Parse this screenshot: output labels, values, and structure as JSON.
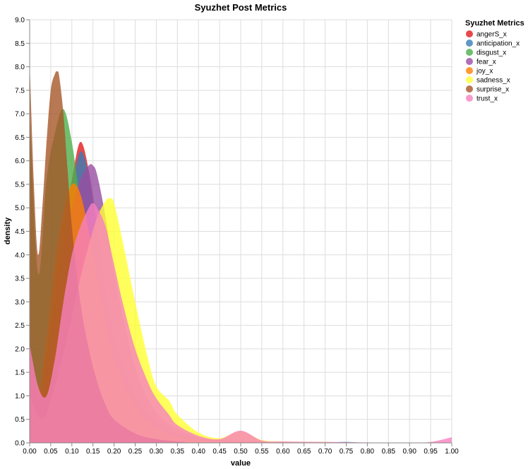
{
  "chart_data": {
    "type": "area",
    "title": "Syuzhet Post Metrics",
    "xlabel": "value",
    "ylabel": "density",
    "xlim": [
      0,
      1
    ],
    "ylim": [
      0,
      9
    ],
    "x_ticks": [
      "0.00",
      "0.05",
      "0.10",
      "0.15",
      "0.20",
      "0.25",
      "0.30",
      "0.35",
      "0.40",
      "0.45",
      "0.50",
      "0.55",
      "0.60",
      "0.65",
      "0.70",
      "0.75",
      "0.80",
      "0.85",
      "0.90",
      "0.95",
      "1.00"
    ],
    "y_ticks": [
      "0.0",
      "0.5",
      "1.0",
      "1.5",
      "2.0",
      "2.5",
      "3.0",
      "3.5",
      "4.0",
      "4.5",
      "5.0",
      "5.5",
      "6.0",
      "6.5",
      "7.0",
      "7.5",
      "8.0",
      "8.5",
      "9.0"
    ],
    "grid": true,
    "legend_title": "Syuzhet Metrics",
    "legend_position": "top-right",
    "series": [
      {
        "name": "angerS_x",
        "color": "#e41a1c",
        "x": [
          0,
          0.02,
          0.04,
          0.06,
          0.08,
          0.1,
          0.12,
          0.14,
          0.16,
          0.18,
          0.2,
          0.25,
          0.3,
          0.35,
          0.4,
          0.45,
          0.5,
          0.55,
          0.6,
          0.7,
          0.8,
          0.9,
          1.0
        ],
        "y": [
          2.2,
          1.1,
          1.9,
          3.3,
          4.6,
          5.6,
          6.4,
          5.8,
          4.6,
          3.3,
          2.3,
          1.0,
          0.45,
          0.2,
          0.08,
          0.03,
          0.02,
          0.01,
          0.0,
          0.0,
          0.0,
          0.0,
          0.0
        ]
      },
      {
        "name": "anticipation_x",
        "color": "#377eb8",
        "x": [
          0,
          0.02,
          0.04,
          0.06,
          0.08,
          0.1,
          0.12,
          0.14,
          0.16,
          0.18,
          0.2,
          0.25,
          0.3,
          0.35,
          0.4,
          0.45,
          0.5,
          0.55,
          0.6,
          0.7,
          0.75,
          0.8,
          0.9,
          1.0
        ],
        "y": [
          2.0,
          1.1,
          1.8,
          3.2,
          4.5,
          5.4,
          6.2,
          5.7,
          4.5,
          3.3,
          2.3,
          1.0,
          0.45,
          0.2,
          0.08,
          0.04,
          0.02,
          0.01,
          0.0,
          0.0,
          0.02,
          0.0,
          0.0,
          0.0
        ]
      },
      {
        "name": "disgust_x",
        "color": "#4daf4a",
        "x": [
          0,
          0.02,
          0.04,
          0.06,
          0.08,
          0.1,
          0.12,
          0.14,
          0.16,
          0.18,
          0.2,
          0.25,
          0.3,
          0.35,
          0.4,
          0.45,
          0.5,
          0.55,
          0.6,
          0.7,
          0.8,
          0.9,
          1.0
        ],
        "y": [
          7.0,
          3.6,
          5.6,
          6.6,
          7.1,
          6.4,
          5.1,
          3.8,
          2.6,
          1.7,
          1.1,
          0.45,
          0.2,
          0.1,
          0.05,
          0.03,
          0.02,
          0.01,
          0.0,
          0.0,
          0.0,
          0.0,
          0.0
        ]
      },
      {
        "name": "fear_x",
        "color": "#984ea3",
        "x": [
          0,
          0.02,
          0.04,
          0.06,
          0.08,
          0.1,
          0.12,
          0.14,
          0.15,
          0.16,
          0.18,
          0.2,
          0.25,
          0.3,
          0.35,
          0.4,
          0.45,
          0.5,
          0.55,
          0.6,
          0.7,
          0.8,
          0.9,
          1.0
        ],
        "y": [
          2.2,
          1.0,
          1.6,
          2.9,
          4.1,
          5.0,
          5.6,
          5.9,
          5.9,
          5.7,
          4.8,
          3.6,
          1.6,
          0.65,
          0.3,
          0.12,
          0.06,
          0.04,
          0.02,
          0.0,
          0.0,
          0.0,
          0.0,
          0.0
        ]
      },
      {
        "name": "joy_x",
        "color": "#ff7f00",
        "x": [
          0,
          0.02,
          0.04,
          0.06,
          0.08,
          0.1,
          0.12,
          0.14,
          0.16,
          0.18,
          0.2,
          0.25,
          0.3,
          0.35,
          0.4,
          0.45,
          0.5,
          0.55,
          0.6,
          0.7,
          0.8,
          0.9,
          1.0
        ],
        "y": [
          2.1,
          1.1,
          2.2,
          3.8,
          4.9,
          5.5,
          5.3,
          4.5,
          3.5,
          2.6,
          1.8,
          0.8,
          0.35,
          0.15,
          0.07,
          0.04,
          0.02,
          0.01,
          0.0,
          0.0,
          0.0,
          0.0,
          0.0
        ]
      },
      {
        "name": "sadness_x",
        "color": "#ffff33",
        "x": [
          0,
          0.03,
          0.06,
          0.09,
          0.12,
          0.14,
          0.16,
          0.18,
          0.19,
          0.2,
          0.22,
          0.25,
          0.28,
          0.3,
          0.33,
          0.35,
          0.4,
          0.45,
          0.5,
          0.55,
          0.6,
          0.65,
          0.7,
          0.75,
          0.8,
          0.9,
          1.0
        ],
        "y": [
          1.0,
          0.5,
          1.2,
          2.3,
          3.5,
          4.2,
          4.8,
          5.15,
          5.2,
          5.1,
          4.3,
          3.0,
          1.8,
          1.2,
          0.9,
          0.6,
          0.22,
          0.1,
          0.25,
          0.06,
          0.03,
          0.02,
          0.02,
          0.0,
          0.0,
          0.0,
          0.0
        ]
      },
      {
        "name": "surprise_x",
        "color": "#a65628",
        "x": [
          0,
          0.01,
          0.02,
          0.03,
          0.04,
          0.05,
          0.06,
          0.065,
          0.07,
          0.08,
          0.09,
          0.1,
          0.12,
          0.14,
          0.16,
          0.18,
          0.2,
          0.25,
          0.3,
          0.35,
          0.4,
          0.5,
          0.6,
          0.8,
          1.0
        ],
        "y": [
          8.1,
          5.5,
          4.0,
          5.0,
          6.4,
          7.5,
          7.85,
          7.9,
          7.8,
          7.0,
          5.8,
          4.6,
          3.0,
          2.0,
          1.3,
          0.8,
          0.5,
          0.2,
          0.08,
          0.03,
          0.0,
          0.0,
          0.0,
          0.0,
          0.0
        ]
      },
      {
        "name": "trust_x",
        "color": "#f781bf",
        "x": [
          0,
          0.02,
          0.04,
          0.06,
          0.08,
          0.1,
          0.12,
          0.14,
          0.15,
          0.16,
          0.18,
          0.2,
          0.22,
          0.25,
          0.28,
          0.3,
          0.33,
          0.35,
          0.4,
          0.45,
          0.5,
          0.55,
          0.6,
          0.7,
          0.8,
          0.9,
          0.95,
          1.0
        ],
        "y": [
          2.1,
          1.2,
          1.0,
          1.8,
          3.0,
          4.0,
          4.6,
          5.0,
          5.1,
          5.0,
          4.6,
          3.8,
          3.0,
          2.0,
          1.3,
          0.95,
          0.6,
          0.38,
          0.15,
          0.08,
          0.26,
          0.05,
          0.03,
          0.02,
          0.01,
          0.0,
          0.02,
          0.12
        ]
      }
    ]
  }
}
